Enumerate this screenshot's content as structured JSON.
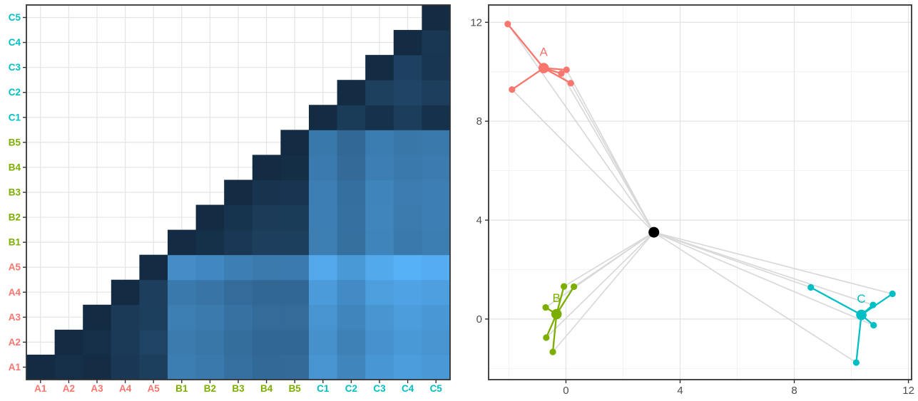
{
  "figure": {
    "description": "Two-panel figure: lower-triangle pairwise distance heatmap (left) and cluster scatter plot with centroids (right)"
  },
  "style": {
    "grid_major": "#E4E4E4",
    "grid_minor": "#F2F2F2",
    "panel_background": "#FFFFFF",
    "panel_border": "#333333",
    "tick_color": "#333333",
    "tick_label_color": "#4D4D4D",
    "spoke_color": "#D9D9D9",
    "grand_centroid_color": "#000000"
  },
  "groups": {
    "A": {
      "label": "A",
      "color": "#F8766D"
    },
    "B": {
      "label": "B",
      "color": "#7CAE00"
    },
    "C": {
      "label": "C",
      "color": "#00BFC4"
    }
  },
  "samples": [
    {
      "id": "A1",
      "group": "A",
      "x": -0.16,
      "y": 9.93
    },
    {
      "id": "A2",
      "group": "A",
      "x": 0.17,
      "y": 9.54
    },
    {
      "id": "A3",
      "group": "A",
      "x": 0.02,
      "y": 10.08
    },
    {
      "id": "A4",
      "group": "A",
      "x": -1.89,
      "y": 9.28
    },
    {
      "id": "A5",
      "group": "A",
      "x": -2.04,
      "y": 11.93
    },
    {
      "id": "B1",
      "group": "B",
      "x": -0.46,
      "y": -1.33
    },
    {
      "id": "B2",
      "group": "B",
      "x": -0.69,
      "y": -0.75
    },
    {
      "id": "B3",
      "group": "B",
      "x": -0.71,
      "y": 0.47
    },
    {
      "id": "B4",
      "group": "B",
      "x": -0.07,
      "y": 1.32
    },
    {
      "id": "B5",
      "group": "B",
      "x": 0.28,
      "y": 1.31
    },
    {
      "id": "C1",
      "group": "C",
      "x": 10.76,
      "y": 0.57
    },
    {
      "id": "C2",
      "group": "C",
      "x": 8.58,
      "y": 1.28
    },
    {
      "id": "C3",
      "group": "C",
      "x": 11.44,
      "y": 1.02
    },
    {
      "id": "C4",
      "group": "C",
      "x": 10.17,
      "y": -1.76
    },
    {
      "id": "C5",
      "group": "C",
      "x": 10.78,
      "y": -0.25
    }
  ],
  "chart_data": [
    {
      "type": "heatmap",
      "title": "",
      "x_categories": [
        "A1",
        "A2",
        "A3",
        "A4",
        "A5",
        "B1",
        "B2",
        "B3",
        "B4",
        "B5",
        "C1",
        "C2",
        "C3",
        "C4",
        "C5"
      ],
      "y_categories_bottom_to_top": [
        "A1",
        "A2",
        "A3",
        "A4",
        "A5",
        "B1",
        "B2",
        "B3",
        "B4",
        "B5",
        "C1",
        "C2",
        "C3",
        "C4",
        "C5"
      ],
      "triangle": "lower (tile drawn when row index <= column index, rows counted from bottom)",
      "cell_value": "euclidean distance between the two samples (see top-level samples array)",
      "fill_gradient": {
        "low": "#132B43",
        "high": "#56B1F7",
        "domain": [
          0,
          18.34
        ]
      },
      "grid": "major gridlines at every category center",
      "legend": "none",
      "axis_text_bold": true
    },
    {
      "type": "scatter",
      "title": "",
      "xlabel": "",
      "ylabel": "",
      "x_range": [
        -2.71,
        12.11
      ],
      "y_range": [
        -2.45,
        12.7
      ],
      "x_tick_labels": [
        "0",
        "4",
        "8",
        "12"
      ],
      "y_tick_labels": [
        "0",
        "4",
        "8",
        "12"
      ],
      "x_ticks": [
        0,
        4,
        8,
        12
      ],
      "y_ticks": [
        0,
        4,
        8,
        12
      ],
      "x_minor_ticks": [
        -2,
        2,
        6,
        10
      ],
      "y_minor_ticks": [
        -2,
        2,
        6,
        10
      ],
      "grid": "major + minor gridlines",
      "legend": "none",
      "series": [
        {
          "name": "A",
          "color": "#F8766D",
          "label": "A",
          "point_ids": [
            "A1",
            "A2",
            "A3",
            "A4",
            "A5"
          ],
          "centroid": {
            "x": -0.78,
            "y": 10.15
          }
        },
        {
          "name": "B",
          "color": "#7CAE00",
          "label": "B",
          "point_ids": [
            "B1",
            "B2",
            "B3",
            "B4",
            "B5"
          ],
          "centroid": {
            "x": -0.33,
            "y": 0.2
          }
        },
        {
          "name": "C",
          "color": "#00BFC4",
          "label": "C",
          "point_ids": [
            "C1",
            "C2",
            "C3",
            "C4",
            "C5"
          ],
          "centroid": {
            "x": 10.35,
            "y": 0.17
          }
        }
      ],
      "grand_centroid": {
        "x": 3.08,
        "y": 3.51
      },
      "spokes": "light gray segments from the grand centroid to every sample point",
      "cluster_segments": "colored segments from each cluster centroid to its 5 points"
    }
  ]
}
